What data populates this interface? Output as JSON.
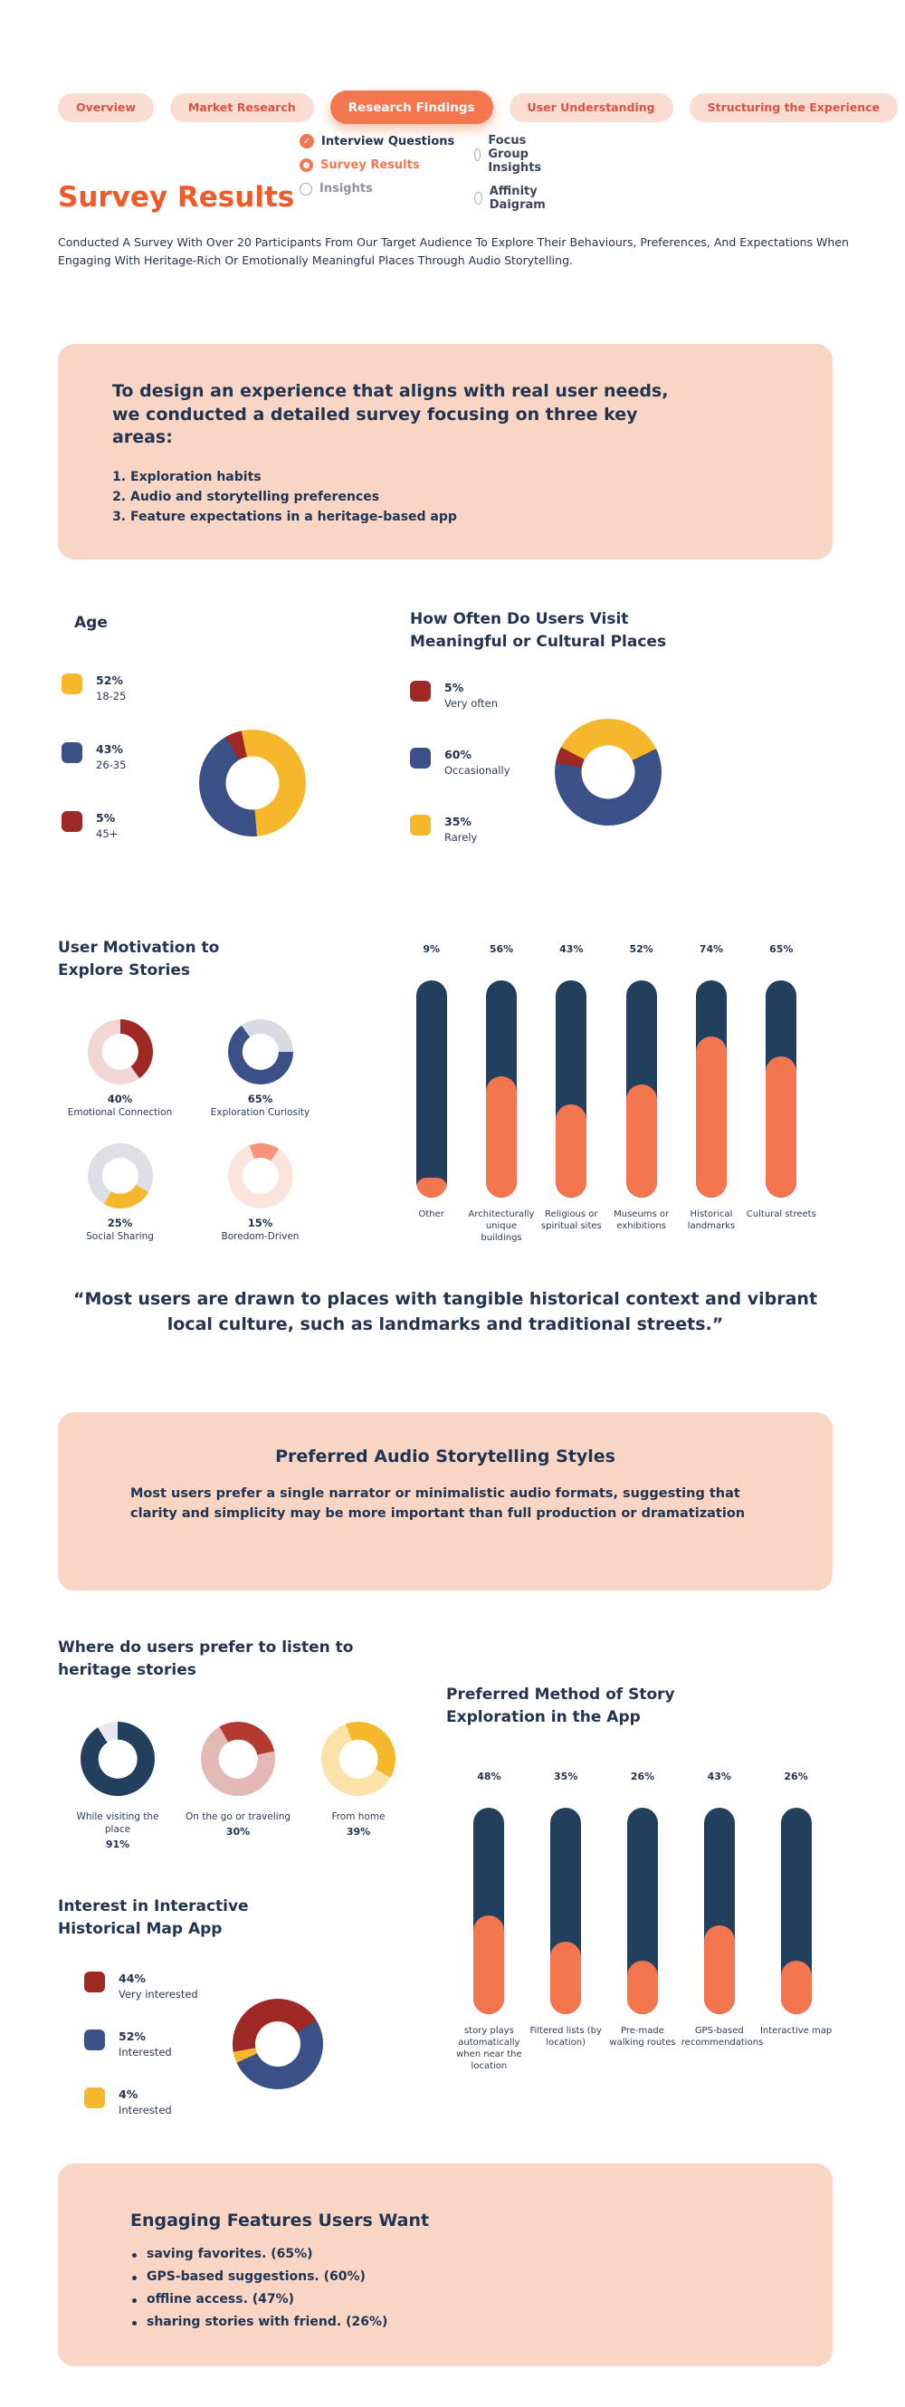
{
  "colors": {
    "accent_orange": "#F4764E",
    "heading_orange": "#EF5A28",
    "navy_text": "#22344F",
    "bar_navy": "#223F5E",
    "blue": "#3A5086",
    "yellow": "#F5B82D",
    "dark_red": "#9E2823",
    "card_pink": "#F9D5C5"
  },
  "tabs": [
    {
      "label": "Overview",
      "active": false
    },
    {
      "label": "Market Research",
      "active": false
    },
    {
      "label": "Research Findings",
      "active": true
    },
    {
      "label": "User Understanding",
      "active": false
    },
    {
      "label": "Structuring the Experience",
      "active": false
    }
  ],
  "subnav": {
    "col1": [
      {
        "label": "Interview Questions",
        "state": "checked"
      },
      {
        "label": "Survey Results",
        "state": "selected"
      },
      {
        "label": "Insights",
        "state": "unselected"
      }
    ],
    "col2": [
      {
        "label": "Focus Group Insights",
        "state": "unselected"
      },
      {
        "label": "Affinity Daigram",
        "state": "unselected"
      }
    ]
  },
  "page": {
    "title": "Survey Results",
    "intro": "Conducted A Survey With Over 20 Participants From Our Target Audience To Explore Their Behaviours, Preferences, And Expectations When Engaging With Heritage-Rich Or Emotionally Meaningful Places Through Audio Storytelling."
  },
  "focus_card": {
    "title": "To design an experience that aligns with real user needs, we conducted a detailed survey focusing on three key areas:",
    "items": [
      "Exploration habits",
      "Audio and storytelling preferences",
      "Feature expectations in a heritage-based app"
    ]
  },
  "age": {
    "title": "Age",
    "legend": [
      {
        "pct": "52%",
        "label": "18-25",
        "color": "#F5B82D"
      },
      {
        "pct": "43%",
        "label": "26-35",
        "color": "#3A5086"
      },
      {
        "pct": "5%",
        "label": "45+",
        "color": "#9E2823"
      }
    ],
    "donut": {
      "from": -30,
      "hole": 0.5,
      "segments": [
        {
          "color": "#9E2823",
          "value": 5
        },
        {
          "color": "#F5B82D",
          "value": 52
        },
        {
          "color": "#3A5086",
          "value": 43
        }
      ]
    }
  },
  "visit": {
    "title": "How Often Do Users Visit Meaningful or Cultural Places",
    "legend": [
      {
        "pct": "5%",
        "label": "Very often",
        "color": "#9E2823"
      },
      {
        "pct": "60%",
        "label": "Occasionally",
        "color": "#3A5086"
      },
      {
        "pct": "35%",
        "label": "Rarely",
        "color": "#F5B82D"
      }
    ],
    "donut": {
      "from": -62,
      "hole": 0.5,
      "segments": [
        {
          "color": "#F5B82D",
          "value": 35
        },
        {
          "color": "#3A5086",
          "value": 60
        },
        {
          "color": "#9E2823",
          "value": 5
        }
      ]
    }
  },
  "motivation": {
    "title": "User Motivation to Explore Stories",
    "donuts": [
      {
        "pct": "40%",
        "label": "Emotional Connection",
        "donut": {
          "from": 0,
          "hole": 0.56,
          "segments": [
            {
              "color": "#9E2823",
              "value": 40
            },
            {
              "color": "#F1D6D4",
              "value": 60
            }
          ]
        }
      },
      {
        "pct": "65%",
        "label": "Exploration Curiosity",
        "donut": {
          "from": 90,
          "hole": 0.56,
          "segments": [
            {
              "color": "#3A5086",
              "value": 65
            },
            {
              "color": "#D8DBE4",
              "value": 35
            }
          ]
        }
      },
      {
        "pct": "25%",
        "label": "Social Sharing",
        "donut": {
          "from": 120,
          "hole": 0.56,
          "segments": [
            {
              "color": "#F5B82D",
              "value": 25
            },
            {
              "color": "#DEDFE4",
              "value": 75
            }
          ]
        }
      },
      {
        "pct": "15%",
        "label": "Boredom-Driven",
        "donut": {
          "from": -20,
          "hole": 0.56,
          "segments": [
            {
              "color": "#F6937A",
              "value": 15
            },
            {
              "color": "#FBE4DC",
              "value": 85
            }
          ]
        }
      }
    ]
  },
  "places_chart": {
    "type": "bar",
    "track_color": "#223F5E",
    "fill_color": "#F4764E",
    "track_h": 240,
    "items": [
      {
        "pct": "9%",
        "value": 9,
        "label": "Other"
      },
      {
        "pct": "56%",
        "value": 56,
        "label": "Architecturally unique buildings"
      },
      {
        "pct": "43%",
        "value": 43,
        "label": "Religious or spiritual sites"
      },
      {
        "pct": "52%",
        "value": 52,
        "label": "Museums or exhibitions"
      },
      {
        "pct": "74%",
        "value": 74,
        "label": "Historical landmarks"
      },
      {
        "pct": "65%",
        "value": 65,
        "label": "Cultural streets"
      }
    ]
  },
  "quote": "“Most users are drawn to places with tangible historical context and vibrant local culture, such as landmarks and traditional streets.”",
  "audio_card": {
    "title": "Preferred Audio Storytelling Styles",
    "body": "Most users prefer a single narrator or minimalistic audio formats, suggesting that clarity and simplicity may be more important than full production or dramatization"
  },
  "listen": {
    "title": "Where do users prefer to listen to heritage stories",
    "donuts": [
      {
        "label": "While visiting the place",
        "pct": "91%",
        "donut": {
          "from": 0,
          "hole": 0.52,
          "segments": [
            {
              "color": "#223F5E",
              "value": 91
            },
            {
              "color": "#E6E8EE",
              "value": 9
            }
          ]
        }
      },
      {
        "label": "On the go or traveling",
        "pct": "30%",
        "donut": {
          "from": -30,
          "hole": 0.52,
          "segments": [
            {
              "color": "#B23A30",
              "value": 30
            },
            {
              "color": "#E3B9B5",
              "value": 70
            }
          ]
        }
      },
      {
        "label": "From home",
        "pct": "39%",
        "donut": {
          "from": -20,
          "hole": 0.52,
          "segments": [
            {
              "color": "#F5B82D",
              "value": 39
            },
            {
              "color": "#FAE2A9",
              "value": 61
            }
          ]
        }
      }
    ]
  },
  "method_chart": {
    "type": "bar",
    "title": "Preferred Method of Story Exploration in the App",
    "track_color": "#223F5E",
    "fill_color": "#F4764E",
    "track_h": 228,
    "items": [
      {
        "pct": "48%",
        "value": 48,
        "label": "story plays automatically when near the location"
      },
      {
        "pct": "35%",
        "value": 35,
        "label": "Filtered lists (by location)"
      },
      {
        "pct": "26%",
        "value": 26,
        "label": "Pre-made walking routes"
      },
      {
        "pct": "43%",
        "value": 43,
        "label": "GPS-based recommendations"
      },
      {
        "pct": "26%",
        "value": 26,
        "label": "Interactive map"
      }
    ]
  },
  "interest": {
    "title": "Interest in Interactive Historical Map App",
    "legend": [
      {
        "pct": "44%",
        "label": "Very interested",
        "color": "#9E2823"
      },
      {
        "pct": "52%",
        "label": "Interested",
        "color": "#3A5086"
      },
      {
        "pct": "4%",
        "label": "Interested",
        "color": "#F5B82D"
      }
    ],
    "donut": {
      "from": -100,
      "hole": 0.5,
      "segments": [
        {
          "color": "#9E2823",
          "value": 44
        },
        {
          "color": "#3A5086",
          "value": 52
        },
        {
          "color": "#F5B82D",
          "value": 4
        }
      ]
    }
  },
  "features_card": {
    "title": "Engaging Features Users Want",
    "items": [
      "saving favorites. (65%)",
      "GPS-based suggestions. (60%)",
      "offline access. (47%)",
      "sharing stories with friend. (26%)"
    ]
  }
}
